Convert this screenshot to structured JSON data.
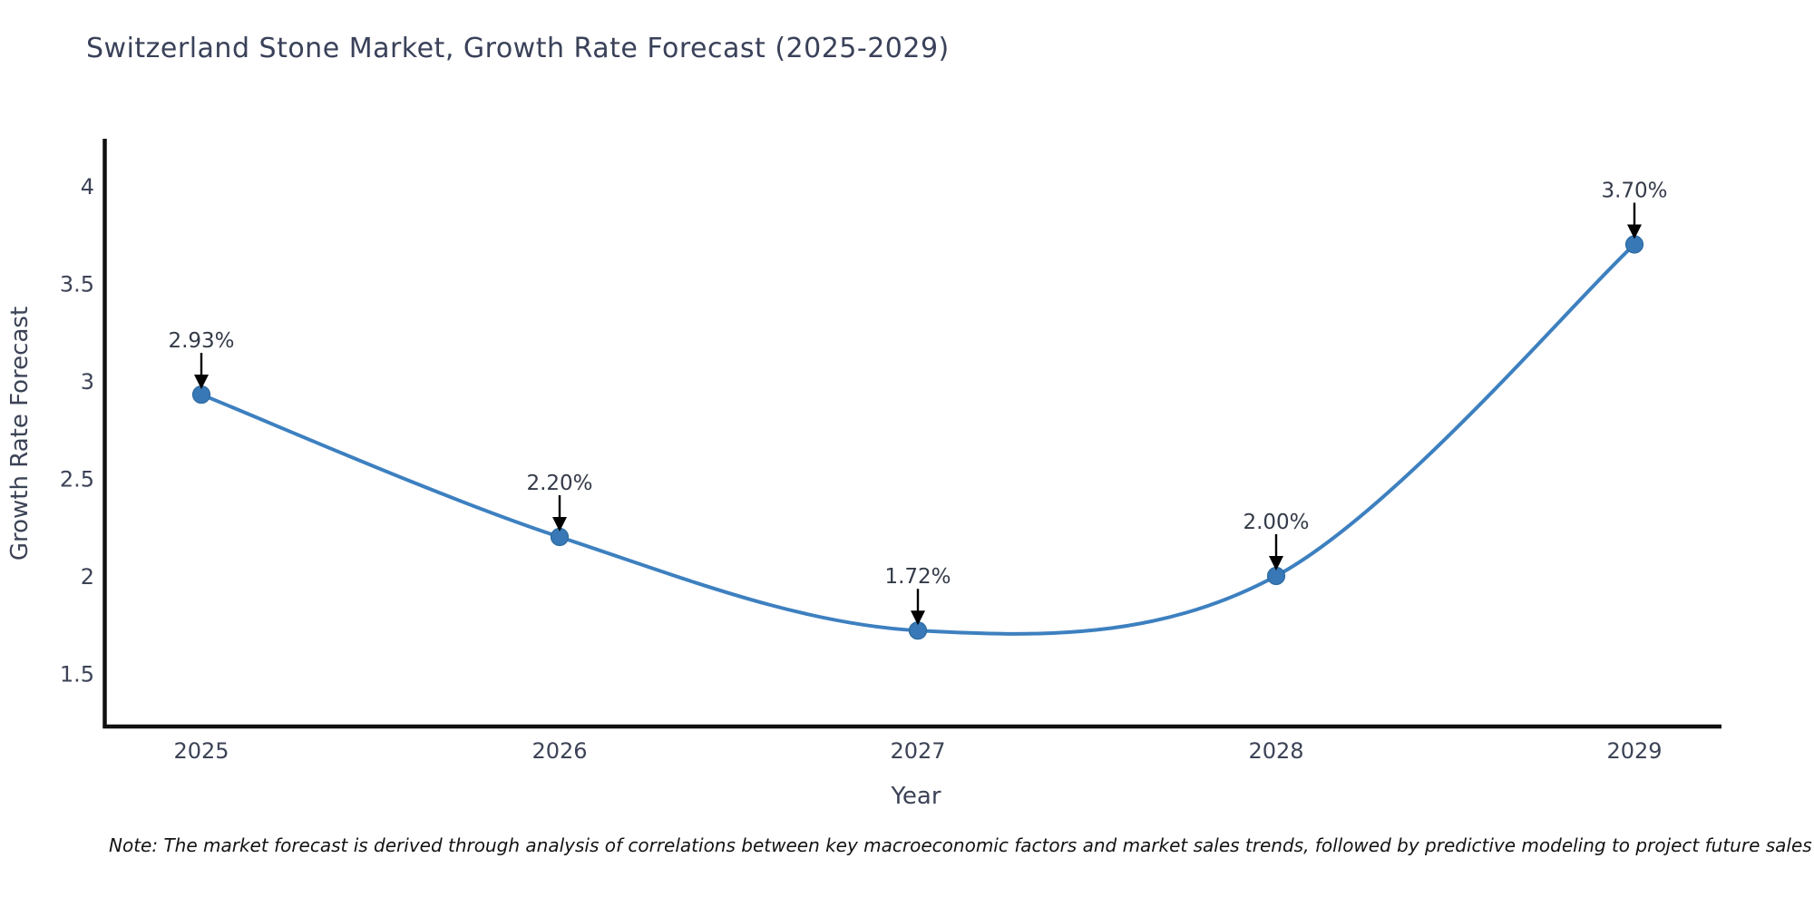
{
  "title": "Switzerland Stone Market, Growth Rate Forecast (2025-2029)",
  "note": "Note: The market forecast is derived through analysis of correlations between key macroeconomic factors and market sales trends, followed by predictive modeling to project future sales",
  "chart_data": {
    "type": "line",
    "line_shape": "spline",
    "title": "Switzerland Stone Market, Growth Rate Forecast (2025-2029)",
    "xlabel": "Year",
    "ylabel": "Growth Rate Forecast",
    "x": [
      2025,
      2026,
      2027,
      2028,
      2029
    ],
    "values": [
      2.93,
      2.2,
      1.72,
      2.0,
      3.7
    ],
    "point_labels": [
      "2.93%",
      "2.20%",
      "1.72%",
      "2.00%",
      "3.70%"
    ],
    "x_ticks": [
      "2025",
      "2026",
      "2027",
      "2028",
      "2029"
    ],
    "y_ticks": [
      "4",
      "3.5",
      "3",
      "2.5",
      "2",
      "1.5"
    ],
    "y_tick_values": [
      4,
      3.5,
      3,
      2.5,
      2,
      1.5
    ],
    "ylim": [
      1.23,
      4.24
    ],
    "xlim": [
      2024.73,
      2029.24
    ],
    "grid": false,
    "legend": "none",
    "annotations_have_arrows": true,
    "colors": {
      "line": "#3d80c0",
      "marker_fill": "#3878b6",
      "marker_edge": "#2d6aa0",
      "axis_line": "#111111",
      "tick_text": "#3c4356",
      "title_text": "#3a4159",
      "annotation_text": "#333a48",
      "arrow": "#000000",
      "note_text": "#131313",
      "background": "#ffffff"
    }
  }
}
